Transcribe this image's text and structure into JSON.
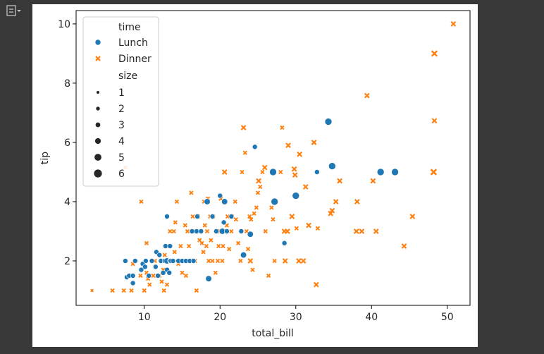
{
  "colors": {
    "lunch": "#1f77b4",
    "dinner": "#ff7f0e",
    "frame": "#000000"
  },
  "toolbar": {
    "icon": "output-collapse-icon"
  },
  "chart_data": {
    "type": "scatter",
    "xlabel": "total_bill",
    "ylabel": "tip",
    "xlim": [
      1.0,
      53.0
    ],
    "ylim": [
      0.5,
      10.45
    ],
    "xticks": [
      10,
      20,
      30,
      40,
      50
    ],
    "yticks": [
      2,
      4,
      6,
      8,
      10
    ],
    "grid": false,
    "legend": {
      "placement": "upper-left",
      "hue_title": "time",
      "hue_entries": [
        {
          "label": "Lunch",
          "marker": "circle"
        },
        {
          "label": "Dinner",
          "marker": "x"
        }
      ],
      "size_title": "size",
      "size_entries": [
        "1",
        "2",
        "3",
        "4",
        "5",
        "6"
      ]
    },
    "series": [
      {
        "name": "Lunch",
        "marker": "circle",
        "points": [
          [
            7.5,
            2.0,
            2
          ],
          [
            7.7,
            1.45,
            2
          ],
          [
            8.0,
            1.5,
            2
          ],
          [
            8.5,
            1.25,
            2
          ],
          [
            8.5,
            1.5,
            2
          ],
          [
            8.8,
            2.0,
            2
          ],
          [
            9.6,
            1.7,
            2
          ],
          [
            9.8,
            1.9,
            2
          ],
          [
            10.1,
            1.8,
            2
          ],
          [
            10.2,
            2.0,
            2
          ],
          [
            10.6,
            1.5,
            2
          ],
          [
            11.0,
            2.0,
            2
          ],
          [
            11.5,
            1.8,
            2
          ],
          [
            11.6,
            2.3,
            2
          ],
          [
            11.8,
            1.5,
            2
          ],
          [
            12.0,
            2.2,
            2
          ],
          [
            12.2,
            2.0,
            2
          ],
          [
            12.5,
            1.6,
            2
          ],
          [
            12.7,
            2.0,
            2
          ],
          [
            12.8,
            2.5,
            2
          ],
          [
            13.0,
            2.0,
            3
          ],
          [
            13.0,
            1.7,
            2
          ],
          [
            13.3,
            1.6,
            2
          ],
          [
            13.4,
            2.0,
            2
          ],
          [
            13.5,
            2.0,
            2
          ],
          [
            13.0,
            3.5,
            2
          ],
          [
            13.8,
            2.0,
            2
          ],
          [
            13.4,
            2.5,
            2
          ],
          [
            14.5,
            2.0,
            2
          ],
          [
            15.0,
            2.0,
            2
          ],
          [
            15.5,
            2.0,
            2
          ],
          [
            16.0,
            2.0,
            2
          ],
          [
            16.3,
            3.0,
            2
          ],
          [
            16.5,
            2.0,
            2
          ],
          [
            16.9,
            3.0,
            2
          ],
          [
            17.0,
            3.5,
            2
          ],
          [
            17.5,
            3.0,
            2
          ],
          [
            18.3,
            4.0,
            3
          ],
          [
            18.5,
            1.4,
            3
          ],
          [
            19.0,
            3.5,
            2
          ],
          [
            19.5,
            3.0,
            2
          ],
          [
            20.0,
            4.2,
            2
          ],
          [
            20.3,
            3.0,
            3
          ],
          [
            20.5,
            3.3,
            2
          ],
          [
            20.6,
            4.0,
            3
          ],
          [
            20.9,
            3.0,
            2
          ],
          [
            21.5,
            3.5,
            2
          ],
          [
            22.8,
            3.0,
            2
          ],
          [
            23.1,
            2.2,
            3
          ],
          [
            24.0,
            2.9,
            3
          ],
          [
            24.6,
            5.85,
            2
          ],
          [
            27.0,
            5.0,
            4
          ],
          [
            27.2,
            4.0,
            4
          ],
          [
            28.5,
            2.6,
            2
          ],
          [
            30.0,
            4.2,
            4
          ],
          [
            32.8,
            5.0,
            2
          ],
          [
            34.3,
            6.7,
            4
          ],
          [
            34.8,
            5.2,
            4
          ],
          [
            41.2,
            5.0,
            4
          ],
          [
            43.1,
            5.0,
            4
          ]
        ]
      },
      {
        "name": "Dinner",
        "marker": "x",
        "points": [
          [
            3.1,
            1.0,
            1
          ],
          [
            5.8,
            1.0,
            2
          ],
          [
            7.3,
            1.0,
            2
          ],
          [
            7.5,
            5.15,
            2
          ],
          [
            8.3,
            1.0,
            2
          ],
          [
            8.5,
            1.9,
            2
          ],
          [
            9.6,
            4.0,
            2
          ],
          [
            9.5,
            1.5,
            2
          ],
          [
            10.0,
            1.0,
            2
          ],
          [
            10.3,
            1.6,
            2
          ],
          [
            10.3,
            2.6,
            2
          ],
          [
            10.5,
            1.4,
            2
          ],
          [
            10.7,
            1.2,
            2
          ],
          [
            11.0,
            2.0,
            2
          ],
          [
            11.2,
            1.5,
            2
          ],
          [
            11.4,
            2.0,
            2
          ],
          [
            12.0,
            1.5,
            2
          ],
          [
            12.3,
            1.3,
            2
          ],
          [
            12.5,
            1.7,
            2
          ],
          [
            12.7,
            2.2,
            2
          ],
          [
            12.6,
            1.0,
            2
          ],
          [
            13.0,
            1.2,
            2
          ],
          [
            13.3,
            2.5,
            2
          ],
          [
            13.4,
            3.0,
            2
          ],
          [
            13.8,
            2.0,
            2
          ],
          [
            13.9,
            3.0,
            2
          ],
          [
            14.0,
            2.3,
            2
          ],
          [
            14.1,
            3.3,
            2
          ],
          [
            14.3,
            4.0,
            2
          ],
          [
            14.5,
            1.9,
            2
          ],
          [
            14.8,
            2.5,
            2
          ],
          [
            15.0,
            1.6,
            2
          ],
          [
            15.2,
            2.0,
            2
          ],
          [
            15.4,
            3.2,
            2
          ],
          [
            15.5,
            1.5,
            2
          ],
          [
            15.7,
            3.0,
            2
          ],
          [
            15.9,
            2.5,
            2
          ],
          [
            16.0,
            2.0,
            2
          ],
          [
            16.2,
            4.3,
            2
          ],
          [
            16.4,
            3.5,
            2
          ],
          [
            16.5,
            3.0,
            2
          ],
          [
            16.7,
            2.0,
            2
          ],
          [
            16.9,
            1.0,
            2
          ],
          [
            17.1,
            3.5,
            2
          ],
          [
            17.3,
            2.7,
            2
          ],
          [
            17.5,
            3.0,
            2
          ],
          [
            17.6,
            2.6,
            2
          ],
          [
            17.8,
            2.3,
            2
          ],
          [
            17.9,
            4.0,
            2
          ],
          [
            18.0,
            3.2,
            2
          ],
          [
            18.2,
            2.5,
            2
          ],
          [
            18.3,
            3.0,
            2
          ],
          [
            18.4,
            4.1,
            2
          ],
          [
            18.5,
            2.0,
            2
          ],
          [
            18.7,
            3.5,
            2
          ],
          [
            18.8,
            2.7,
            2
          ],
          [
            19.0,
            2.0,
            2
          ],
          [
            19.1,
            3.5,
            2
          ],
          [
            19.4,
            1.6,
            2
          ],
          [
            19.5,
            3.0,
            2
          ],
          [
            19.7,
            2.0,
            2
          ],
          [
            19.8,
            2.5,
            2
          ],
          [
            20.0,
            3.0,
            2
          ],
          [
            20.1,
            4.1,
            2
          ],
          [
            20.3,
            2.0,
            2
          ],
          [
            20.4,
            2.5,
            2
          ],
          [
            20.6,
            5.0,
            3
          ],
          [
            20.7,
            4.0,
            2
          ],
          [
            20.9,
            3.2,
            2
          ],
          [
            21.0,
            3.5,
            2
          ],
          [
            21.2,
            2.4,
            2
          ],
          [
            21.5,
            3.0,
            2
          ],
          [
            21.6,
            3.5,
            2
          ],
          [
            22.0,
            4.0,
            2
          ],
          [
            22.1,
            3.4,
            2
          ],
          [
            22.4,
            2.6,
            2
          ],
          [
            22.7,
            2.0,
            2
          ],
          [
            22.9,
            5.0,
            2
          ],
          [
            23.1,
            6.5,
            3
          ],
          [
            23.3,
            5.65,
            2
          ],
          [
            23.5,
            3.0,
            2
          ],
          [
            23.7,
            2.4,
            2
          ],
          [
            23.9,
            3.5,
            2
          ],
          [
            24.0,
            2.0,
            3
          ],
          [
            24.1,
            3.4,
            2
          ],
          [
            24.3,
            1.7,
            2
          ],
          [
            24.5,
            3.6,
            2
          ],
          [
            24.8,
            3.8,
            2
          ],
          [
            25.0,
            4.3,
            2
          ],
          [
            25.1,
            4.7,
            3
          ],
          [
            25.3,
            4.5,
            2
          ],
          [
            25.6,
            5.0,
            2
          ],
          [
            25.9,
            5.15,
            3
          ],
          [
            26.0,
            3.0,
            2
          ],
          [
            26.4,
            1.5,
            2
          ],
          [
            26.8,
            3.8,
            2
          ],
          [
            27.0,
            3.4,
            2
          ],
          [
            27.2,
            2.0,
            2
          ],
          [
            27.3,
            4.0,
            3
          ],
          [
            28.0,
            5.0,
            2
          ],
          [
            28.2,
            6.5,
            2
          ],
          [
            28.5,
            3.0,
            3
          ],
          [
            28.6,
            2.0,
            3
          ],
          [
            28.9,
            3.0,
            3
          ],
          [
            29.0,
            5.9,
            3
          ],
          [
            29.5,
            3.5,
            3
          ],
          [
            29.8,
            5.1,
            3
          ],
          [
            29.9,
            4.9,
            3
          ],
          [
            30.1,
            3.1,
            2
          ],
          [
            30.4,
            2.0,
            3
          ],
          [
            30.5,
            5.6,
            3
          ],
          [
            31.0,
            2.0,
            3
          ],
          [
            31.3,
            4.5,
            3
          ],
          [
            31.7,
            3.2,
            3
          ],
          [
            32.4,
            6.0,
            3
          ],
          [
            32.7,
            1.2,
            3
          ],
          [
            32.9,
            3.1,
            2
          ],
          [
            34.6,
            3.6,
            3
          ],
          [
            34.8,
            3.7,
            3
          ],
          [
            35.3,
            4.0,
            3
          ],
          [
            35.8,
            4.7,
            3
          ],
          [
            38.0,
            3.0,
            3
          ],
          [
            38.1,
            4.0,
            3
          ],
          [
            38.7,
            3.0,
            3
          ],
          [
            39.4,
            7.58,
            3
          ],
          [
            40.2,
            4.7,
            3
          ],
          [
            40.6,
            3.0,
            3
          ],
          [
            44.3,
            2.5,
            3
          ],
          [
            45.4,
            3.5,
            3
          ],
          [
            48.2,
            5.0,
            4
          ],
          [
            48.3,
            6.73,
            3
          ],
          [
            48.3,
            9.0,
            4
          ],
          [
            48.2,
            5.0,
            4
          ],
          [
            50.8,
            10.0,
            3
          ]
        ]
      }
    ]
  }
}
